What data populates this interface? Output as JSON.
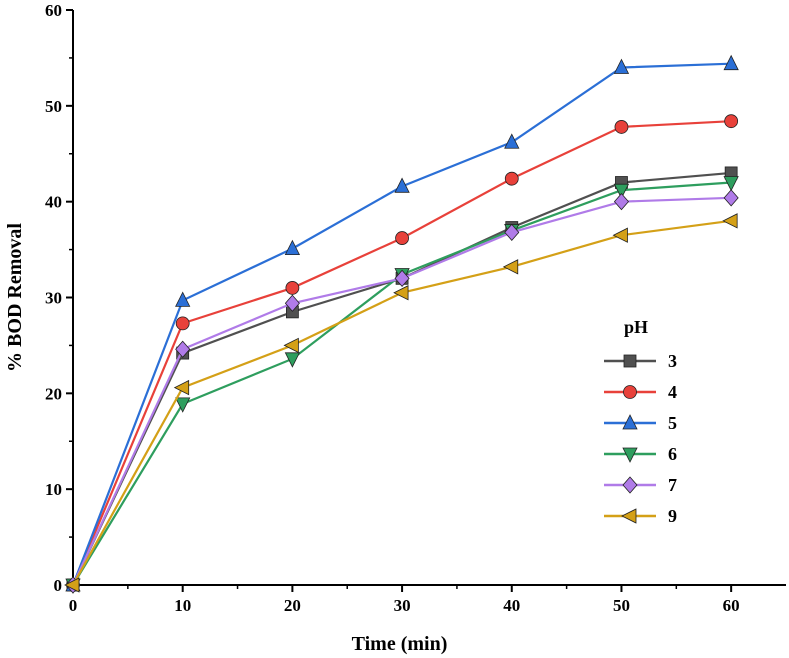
{
  "chart_data": {
    "type": "line",
    "title": "",
    "xlabel": "Time (min)",
    "ylabel": "% BOD Removal",
    "xlim": [
      0,
      65
    ],
    "ylim": [
      0,
      60
    ],
    "xticks": [
      0,
      10,
      20,
      30,
      40,
      50,
      60
    ],
    "yticks": [
      0,
      10,
      20,
      30,
      40,
      50,
      60
    ],
    "x": [
      0,
      10,
      20,
      30,
      40,
      50,
      60
    ],
    "grid": false,
    "legend": {
      "title": "pH",
      "position": "center-right"
    },
    "series": [
      {
        "name": "3",
        "color": "#505050",
        "marker": "square",
        "values": [
          0,
          24.2,
          28.5,
          32.0,
          37.3,
          42.0,
          43.0
        ]
      },
      {
        "name": "4",
        "color": "#e8413a",
        "marker": "circle",
        "values": [
          0,
          27.3,
          31.0,
          36.2,
          42.4,
          47.8,
          48.4
        ]
      },
      {
        "name": "5",
        "color": "#2b6fd6",
        "marker": "triangle-up",
        "values": [
          0,
          29.7,
          35.1,
          41.6,
          46.2,
          54.0,
          54.4
        ]
      },
      {
        "name": "6",
        "color": "#2e9e5e",
        "marker": "triangle-down",
        "values": [
          0,
          18.9,
          23.6,
          32.4,
          37.0,
          41.2,
          42.0
        ]
      },
      {
        "name": "7",
        "color": "#b07be8",
        "marker": "diamond",
        "values": [
          0,
          24.6,
          29.4,
          32.0,
          36.8,
          40.0,
          40.4
        ]
      },
      {
        "name": "9",
        "color": "#d4a017",
        "marker": "triangle-left",
        "values": [
          0,
          20.6,
          25.0,
          30.5,
          33.2,
          36.5,
          38.0
        ]
      }
    ]
  }
}
